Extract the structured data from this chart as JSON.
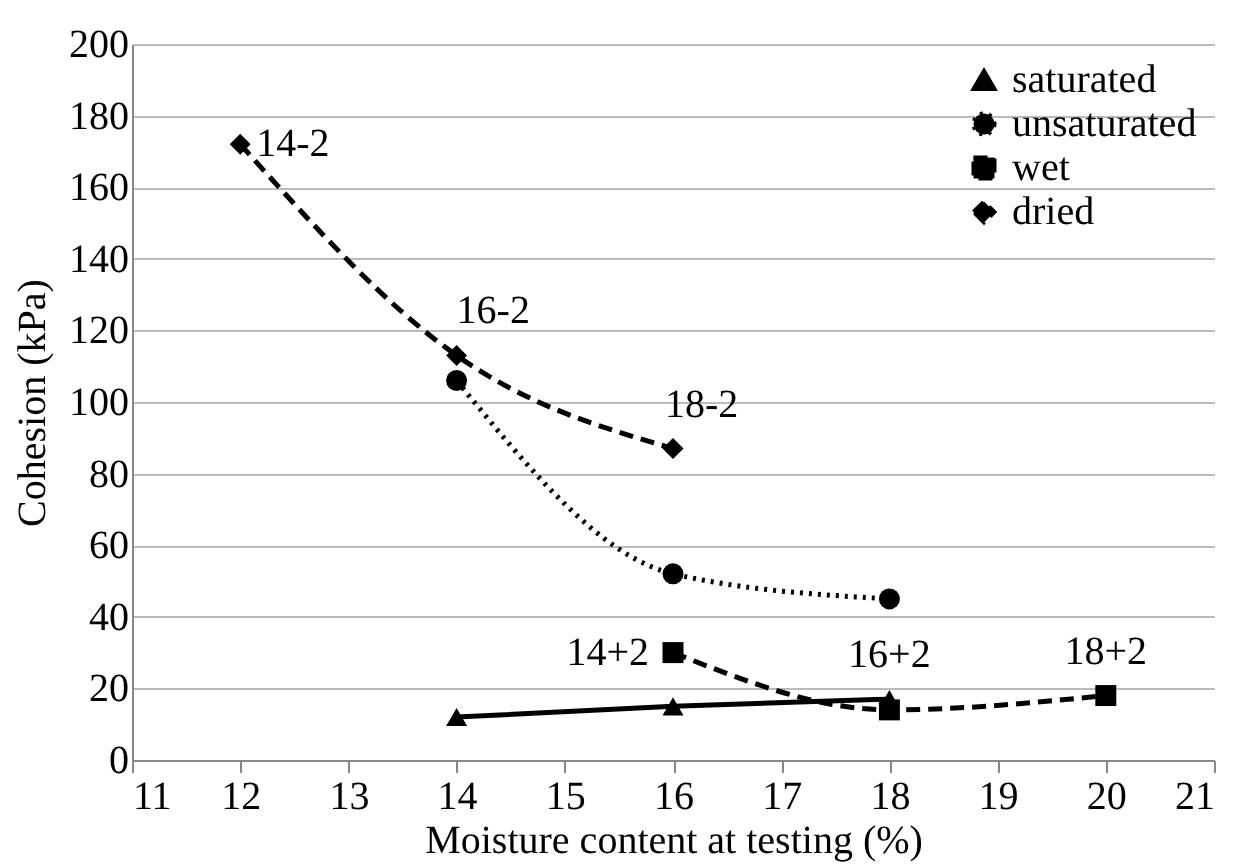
{
  "chart_data": {
    "type": "line",
    "xlabel": "Moisture content at testing (%)",
    "ylabel": "Cohesion (kPa)",
    "xlim": [
      11,
      21
    ],
    "xticks": [
      11,
      12,
      13,
      14,
      15,
      16,
      17,
      18,
      19,
      20,
      21
    ],
    "ylim": [
      0,
      200
    ],
    "yticks": [
      0,
      20,
      40,
      60,
      80,
      100,
      120,
      140,
      160,
      180,
      200
    ],
    "grid": "y",
    "legend": "top right",
    "series": [
      {
        "name": "saturated",
        "color": "#000000",
        "marker": "triangle",
        "line_style": "solid",
        "x": [
          14,
          16,
          18
        ],
        "values": [
          12,
          15,
          17
        ]
      },
      {
        "name": "unsaturated",
        "color": "#000000",
        "marker": "circle",
        "line_style": "dotted",
        "x": [
          14,
          16,
          18
        ],
        "values": [
          106,
          52,
          45
        ]
      },
      {
        "name": "wet",
        "color": "#000000",
        "marker": "square",
        "line_style": "dashed",
        "x": [
          16,
          18,
          20
        ],
        "values": [
          30,
          14,
          18
        ]
      },
      {
        "name": "dried",
        "color": "#000000",
        "marker": "diamond",
        "line_style": "dashed",
        "x": [
          12,
          14,
          16
        ],
        "values": [
          172,
          113,
          87
        ]
      }
    ],
    "annotations": [
      {
        "text": "14-2",
        "x": 12,
        "y": 172
      },
      {
        "text": "16-2",
        "x": 14,
        "y": 113
      },
      {
        "text": "18-2",
        "x": 16,
        "y": 87
      },
      {
        "text": "14+2",
        "x": 16,
        "y": 30
      },
      {
        "text": "16+2",
        "x": 18,
        "y": 17
      },
      {
        "text": "18+2",
        "x": 20,
        "y": 18
      }
    ]
  }
}
